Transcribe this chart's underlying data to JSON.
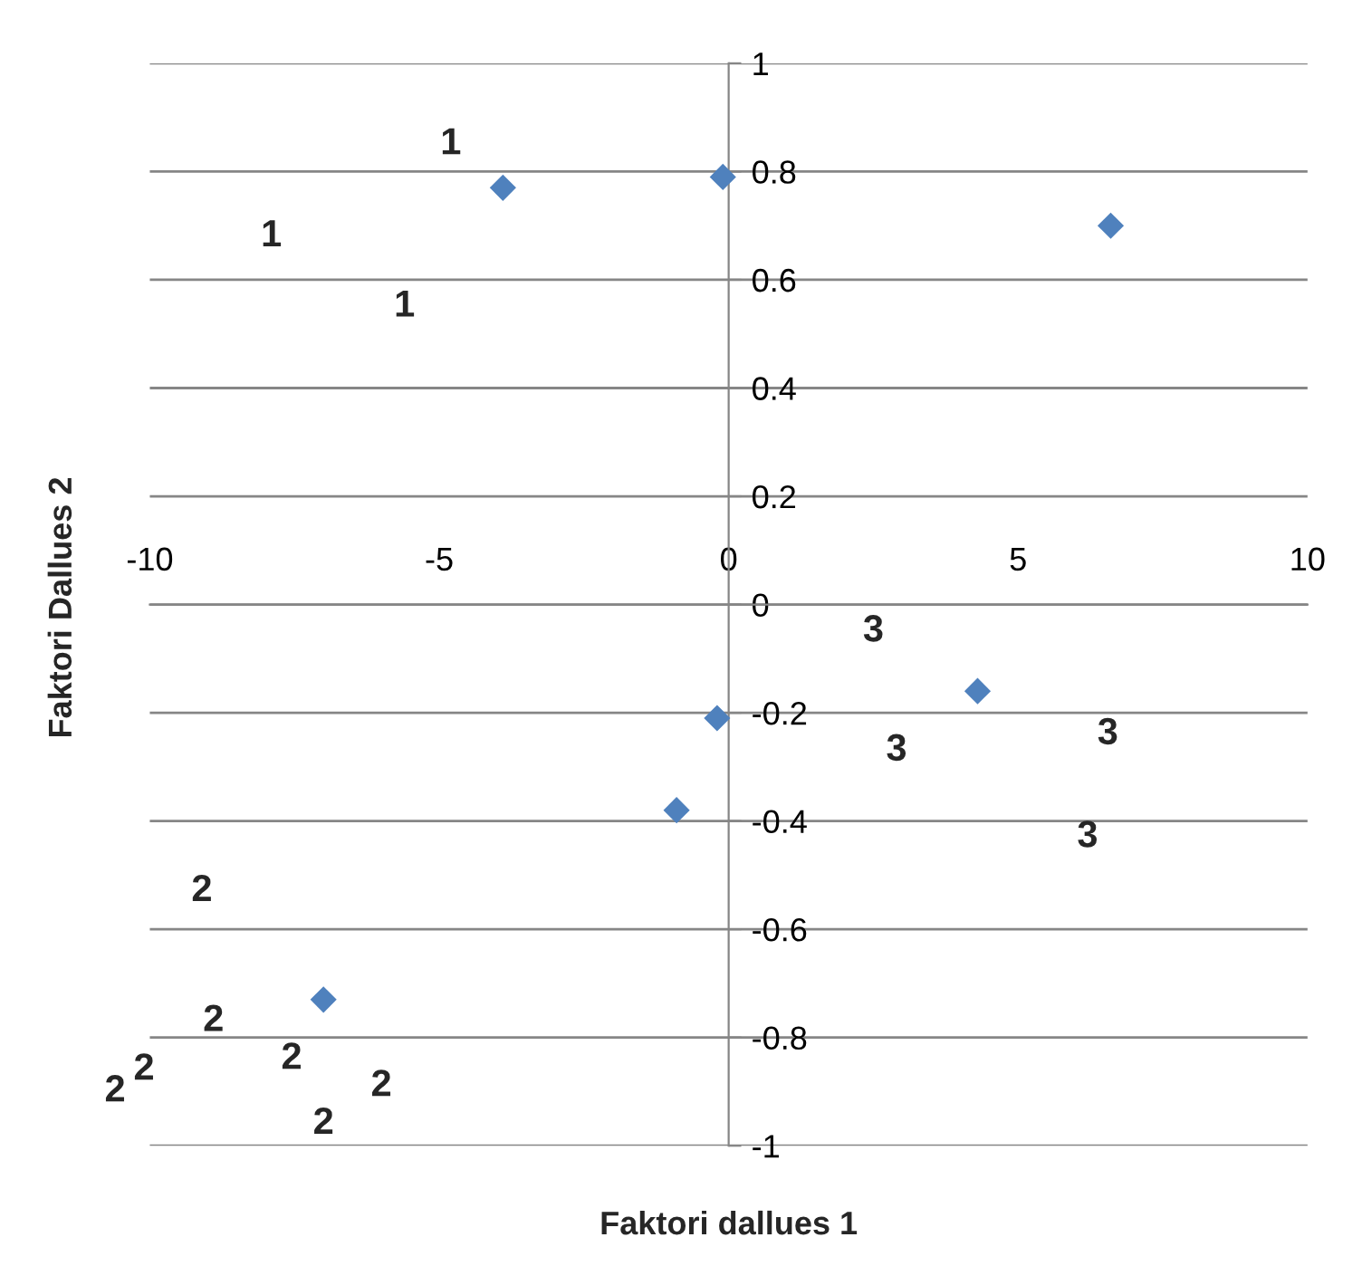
{
  "chart_data": {
    "type": "scatter",
    "xlabel": "Faktori dallues 1",
    "ylabel": "Faktori Dallues 2",
    "x": [
      -3.9,
      -0.1,
      6.6,
      4.3,
      -0.2,
      -0.9,
      -7.0
    ],
    "series": [
      {
        "color": "#4f81bd",
        "values": [
          0.77,
          0.79,
          0.7,
          -0.16,
          -0.21,
          -0.38,
          -0.73
        ]
      }
    ],
    "xlim": [
      -10,
      10
    ],
    "xticks": [
      -10,
      -5,
      0,
      5,
      10
    ],
    "ylim": [
      -1,
      1
    ],
    "yticks": [
      -1,
      -0.8,
      -0.6,
      -0.4,
      -0.2,
      0,
      0.2,
      0.4,
      0.6,
      0.8,
      1
    ],
    "grid": "y",
    "marker": "diamond",
    "legend": false,
    "annotations": [
      "1",
      "1",
      "1",
      "3",
      "3",
      "3",
      "3",
      "2",
      "2",
      "2",
      "2",
      "2",
      "2",
      "2"
    ]
  }
}
